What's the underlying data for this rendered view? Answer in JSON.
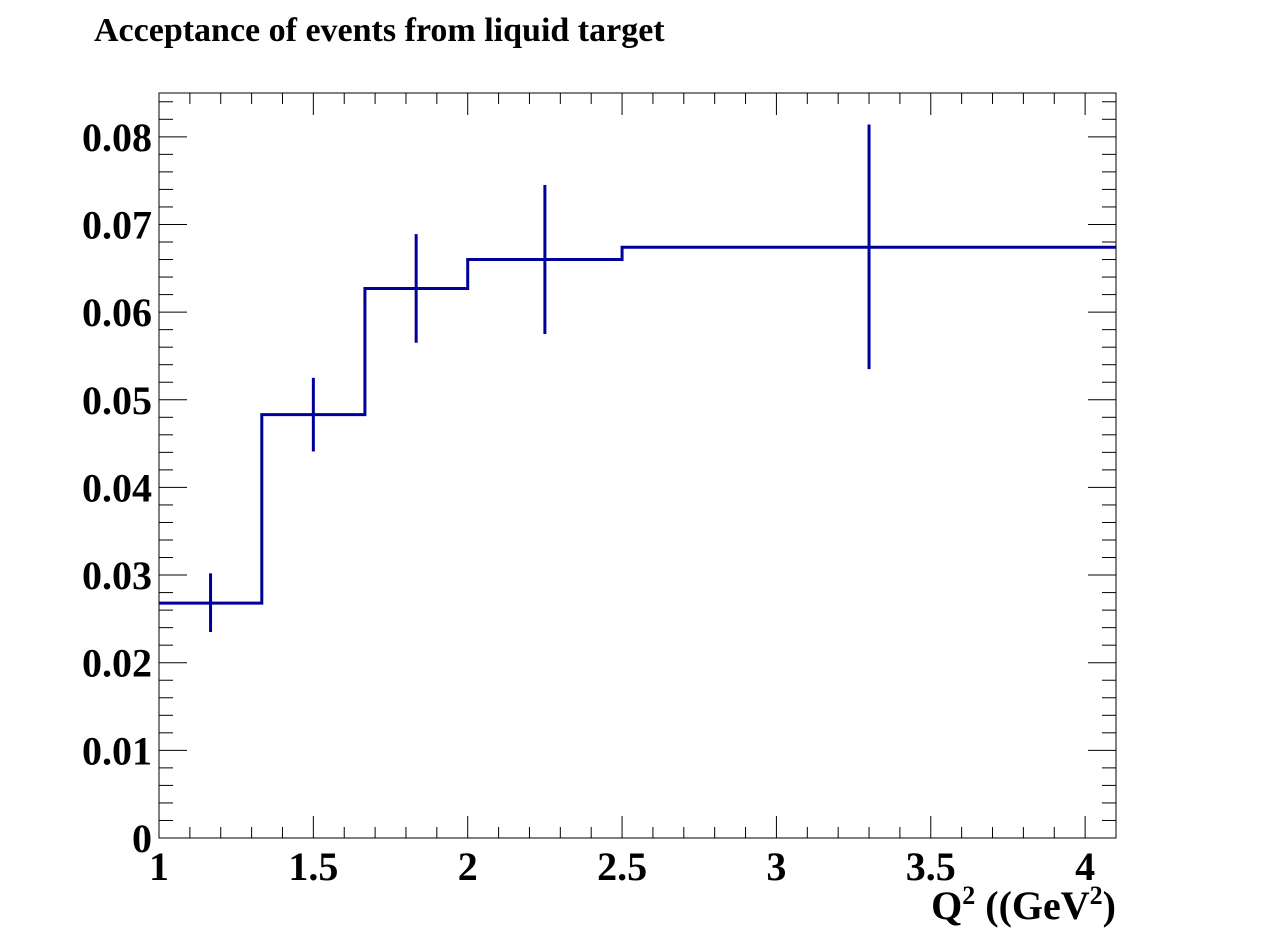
{
  "chart_data": {
    "type": "line",
    "style": "step-histogram-with-error-bars",
    "title": "Acceptance of events from liquid target",
    "xlabel": {
      "base": "Q",
      "base_sup": "2",
      "mid": " ((GeV",
      "mid_sup": "2",
      "end": ")"
    },
    "ylabel": "",
    "xlim": [
      1.0,
      4.1
    ],
    "ylim": [
      0.0,
      0.085
    ],
    "grid": false,
    "line_color": "#000099",
    "x_ticks": [
      "1",
      "1.5",
      "2",
      "2.5",
      "3",
      "3.5",
      "4"
    ],
    "x_tick_values": [
      1.0,
      1.5,
      2.0,
      2.5,
      3.0,
      3.5,
      4.0
    ],
    "y_ticks": [
      "0",
      "0.01",
      "0.02",
      "0.03",
      "0.04",
      "0.05",
      "0.06",
      "0.07",
      "0.08"
    ],
    "y_tick_values": [
      0.0,
      0.01,
      0.02,
      0.03,
      0.04,
      0.05,
      0.06,
      0.07,
      0.08
    ],
    "bins": [
      {
        "x_low": 1.0,
        "x_high": 1.333,
        "x_center": 1.167,
        "value": 0.0268,
        "err_low": 0.0235,
        "err_high": 0.0302
      },
      {
        "x_low": 1.333,
        "x_high": 1.667,
        "x_center": 1.5,
        "value": 0.0483,
        "err_low": 0.0441,
        "err_high": 0.0525
      },
      {
        "x_low": 1.667,
        "x_high": 2.0,
        "x_center": 1.833,
        "value": 0.0627,
        "err_low": 0.0565,
        "err_high": 0.0689
      },
      {
        "x_low": 2.0,
        "x_high": 2.5,
        "x_center": 2.25,
        "value": 0.066,
        "err_low": 0.0575,
        "err_high": 0.0745
      },
      {
        "x_low": 2.5,
        "x_high": 4.1,
        "x_center": 3.3,
        "value": 0.0674,
        "err_low": 0.0535,
        "err_high": 0.0814
      }
    ]
  }
}
